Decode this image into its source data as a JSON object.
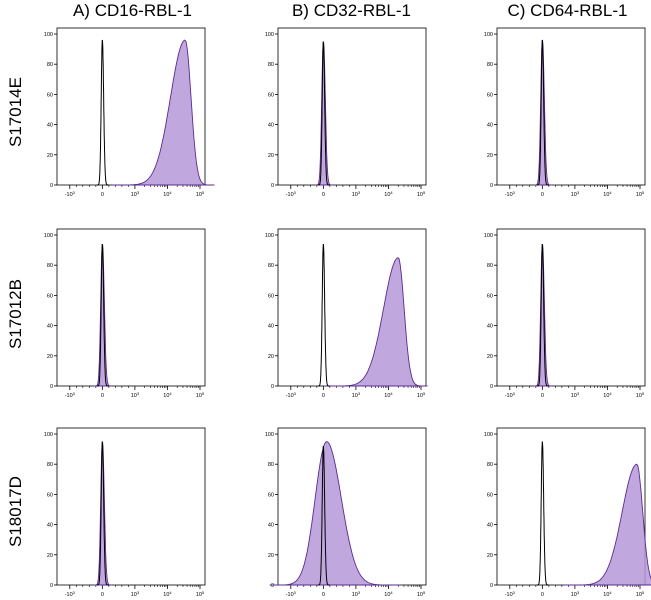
{
  "columns": [
    "A) CD16-RBL-1",
    "B) CD32-RBL-1",
    "C) CD64-RBL-1"
  ],
  "rows": [
    "S17014E",
    "S17012B",
    "S18017D"
  ],
  "colors": {
    "sample_fill": "#b598d8",
    "sample_stroke": "#5b2a91",
    "control_line": "#000000",
    "axis": "#000000"
  },
  "chart_data": {
    "type": "area",
    "description_note": "",
    "x_scale": "biexponential",
    "x_ticks": [
      "-10^3",
      "0",
      "10^3",
      "10^4",
      "10^5"
    ],
    "ylim": [
      0,
      100
    ],
    "y_ticks": [
      "0",
      "20",
      "40",
      "60",
      "80",
      "100"
    ],
    "panels": [
      {
        "row": "S17014E",
        "column": "A) CD16-RBL-1",
        "series": [
          {
            "role": "control",
            "peak_position": 0,
            "peak_height": 96
          },
          {
            "role": "sample",
            "peak_position": 35000,
            "peak_height": 96
          }
        ]
      },
      {
        "row": "S17014E",
        "column": "B) CD32-RBL-1",
        "series": [
          {
            "role": "control",
            "peak_position": 0,
            "peak_height": 95
          },
          {
            "role": "sample",
            "peak_position": 0,
            "peak_height": 95
          }
        ]
      },
      {
        "row": "S17014E",
        "column": "C) CD64-RBL-1",
        "series": [
          {
            "role": "control",
            "peak_position": 0,
            "peak_height": 96
          },
          {
            "role": "sample",
            "peak_position": 0,
            "peak_height": 96
          }
        ]
      },
      {
        "row": "S17012B",
        "column": "A) CD16-RBL-1",
        "series": [
          {
            "role": "control",
            "peak_position": 0,
            "peak_height": 94
          },
          {
            "role": "sample",
            "peak_position": 0,
            "peak_height": 94
          }
        ]
      },
      {
        "row": "S17012B",
        "column": "B) CD32-RBL-1",
        "series": [
          {
            "role": "control",
            "peak_position": 0,
            "peak_height": 94
          },
          {
            "role": "sample",
            "peak_position": 20000,
            "peak_height": 85
          }
        ]
      },
      {
        "row": "S17012B",
        "column": "C) CD64-RBL-1",
        "series": [
          {
            "role": "control",
            "peak_position": 0,
            "peak_height": 94
          },
          {
            "role": "sample",
            "peak_position": 0,
            "peak_height": 94
          }
        ]
      },
      {
        "row": "S18017D",
        "column": "A) CD16-RBL-1",
        "series": [
          {
            "role": "control",
            "peak_position": 0,
            "peak_height": 95
          },
          {
            "role": "sample",
            "peak_position": 0,
            "peak_height": 95
          }
        ]
      },
      {
        "row": "S18017D",
        "column": "B) CD32-RBL-1",
        "series": [
          {
            "role": "control",
            "peak_position": 0,
            "peak_height": 92
          },
          {
            "role": "sample",
            "peak_position": 100,
            "peak_height": 95
          }
        ]
      },
      {
        "row": "S18017D",
        "column": "C) CD64-RBL-1",
        "series": [
          {
            "role": "control",
            "peak_position": 0,
            "peak_height": 95
          },
          {
            "role": "sample",
            "peak_position": 80000,
            "peak_height": 80
          }
        ]
      }
    ]
  }
}
